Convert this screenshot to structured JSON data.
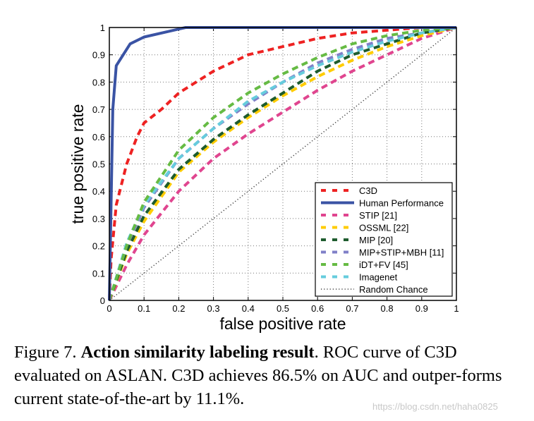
{
  "chart_data": {
    "type": "line",
    "xlabel": "false positive rate",
    "ylabel": "true positive rate",
    "xlim": [
      0,
      1
    ],
    "ylim": [
      0,
      1
    ],
    "xticks": [
      "0",
      "0.1",
      "0.2",
      "0.3",
      "0.4",
      "0.5",
      "0.6",
      "0.7",
      "0.8",
      "0.9",
      "1"
    ],
    "yticks": [
      "0",
      "0.1",
      "0.2",
      "0.3",
      "0.4",
      "0.5",
      "0.6",
      "0.7",
      "0.8",
      "0.9",
      "1"
    ],
    "grid": true,
    "legend_position": "bottom-right",
    "series": [
      {
        "name": "C3D",
        "color": "#ee2222",
        "style": "dashed",
        "x": [
          0,
          0.005,
          0.02,
          0.05,
          0.08,
          0.1,
          0.15,
          0.2,
          0.3,
          0.4,
          0.5,
          0.6,
          0.7,
          0.8,
          0.9,
          1
        ],
        "y": [
          0,
          0.15,
          0.35,
          0.5,
          0.6,
          0.65,
          0.7,
          0.76,
          0.84,
          0.9,
          0.93,
          0.96,
          0.98,
          0.99,
          1,
          1
        ]
      },
      {
        "name": "Human Performance",
        "color": "#3a53a4",
        "style": "solid",
        "x": [
          0,
          0.01,
          0.02,
          0.06,
          0.1,
          0.22,
          1
        ],
        "y": [
          0,
          0.7,
          0.86,
          0.94,
          0.965,
          1,
          1
        ]
      },
      {
        "name": "STIP [21]",
        "color": "#e0458f",
        "style": "dashed",
        "x": [
          0,
          0.05,
          0.1,
          0.2,
          0.3,
          0.4,
          0.5,
          0.6,
          0.7,
          0.8,
          0.9,
          1
        ],
        "y": [
          0,
          0.13,
          0.24,
          0.4,
          0.52,
          0.61,
          0.69,
          0.77,
          0.84,
          0.9,
          0.96,
          1
        ]
      },
      {
        "name": "OSSML [22]",
        "color": "#ffcc00",
        "style": "dashed",
        "x": [
          0,
          0.05,
          0.1,
          0.2,
          0.3,
          0.4,
          0.5,
          0.6,
          0.7,
          0.8,
          0.9,
          1
        ],
        "y": [
          0,
          0.17,
          0.29,
          0.47,
          0.58,
          0.67,
          0.75,
          0.82,
          0.88,
          0.93,
          0.97,
          1
        ]
      },
      {
        "name": "MIP [20]",
        "color": "#1e5c2e",
        "style": "dashed",
        "x": [
          0,
          0.05,
          0.1,
          0.2,
          0.3,
          0.4,
          0.5,
          0.6,
          0.7,
          0.8,
          0.9,
          1
        ],
        "y": [
          0,
          0.18,
          0.31,
          0.48,
          0.59,
          0.68,
          0.76,
          0.84,
          0.9,
          0.94,
          0.98,
          1
        ]
      },
      {
        "name": "MIP+STIP+MBH [11]",
        "color": "#8080c8",
        "style": "dashed",
        "x": [
          0,
          0.05,
          0.1,
          0.2,
          0.3,
          0.4,
          0.5,
          0.6,
          0.7,
          0.8,
          0.9,
          1
        ],
        "y": [
          0,
          0.2,
          0.34,
          0.52,
          0.63,
          0.72,
          0.8,
          0.87,
          0.92,
          0.96,
          0.98,
          1
        ]
      },
      {
        "name": "iDT+FV [45]",
        "color": "#66bb44",
        "style": "dashed",
        "x": [
          0,
          0.05,
          0.1,
          0.2,
          0.3,
          0.4,
          0.5,
          0.6,
          0.7,
          0.8,
          0.9,
          1
        ],
        "y": [
          0,
          0.2,
          0.36,
          0.55,
          0.67,
          0.76,
          0.83,
          0.89,
          0.94,
          0.97,
          0.99,
          1
        ]
      },
      {
        "name": "Imagenet",
        "color": "#66ccdd",
        "style": "dashed",
        "x": [
          0,
          0.05,
          0.1,
          0.2,
          0.3,
          0.4,
          0.5,
          0.6,
          0.7,
          0.8,
          0.9,
          1
        ],
        "y": [
          0,
          0.21,
          0.35,
          0.52,
          0.63,
          0.73,
          0.8,
          0.86,
          0.91,
          0.95,
          0.98,
          1
        ]
      },
      {
        "name": "Random Chance",
        "color": "#444444",
        "style": "dotted",
        "x": [
          0,
          1
        ],
        "y": [
          0,
          1
        ]
      }
    ]
  },
  "caption": {
    "prefix": "Figure 7. ",
    "bold": "Action similarity labeling result",
    "rest": ".  ROC curve of C3D evaluated on ASLAN. C3D achieves 86.5% on AUC and outper-forms current state-of-the-art by 11.1%."
  },
  "watermark": "https://blog.csdn.net/haha0825"
}
